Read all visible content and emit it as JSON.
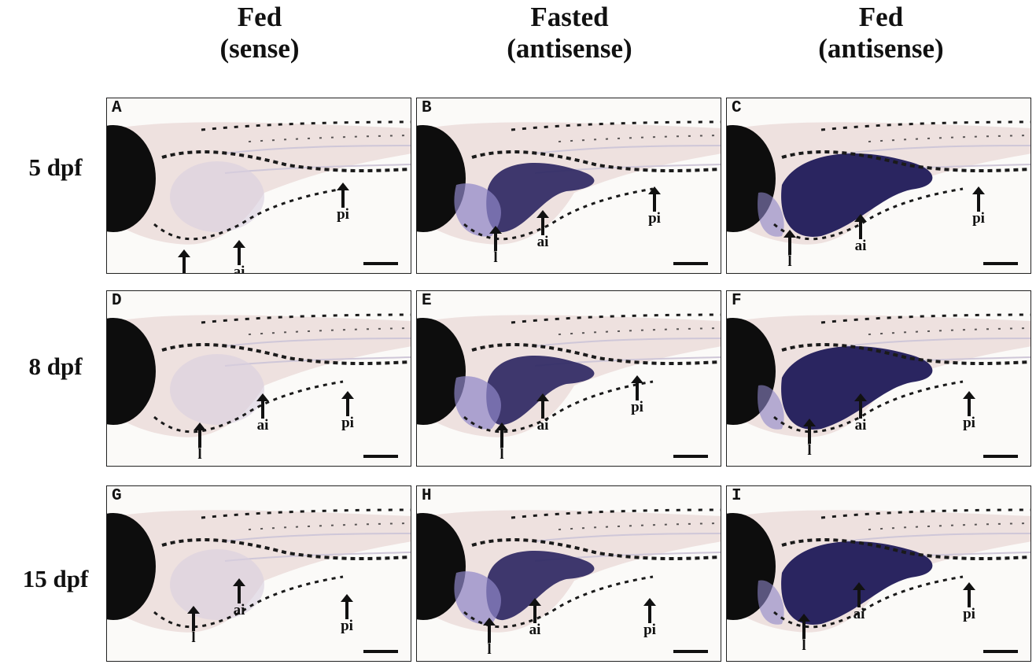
{
  "columns": [
    {
      "title": "Fed",
      "subtitle": "(sense)"
    },
    {
      "title": "Fasted",
      "subtitle": "(antisense)"
    },
    {
      "title": "Fed",
      "subtitle": "(antisense)"
    }
  ],
  "rows": [
    {
      "label": "5 dpf"
    },
    {
      "label": "8 dpf"
    },
    {
      "label": "15 dpf"
    }
  ],
  "panels": [
    {
      "letter": "A",
      "stain": "none"
    },
    {
      "letter": "B",
      "stain": "moderate"
    },
    {
      "letter": "C",
      "stain": "strong"
    },
    {
      "letter": "D",
      "stain": "none"
    },
    {
      "letter": "E",
      "stain": "moderate"
    },
    {
      "letter": "F",
      "stain": "strong"
    },
    {
      "letter": "G",
      "stain": "none"
    },
    {
      "letter": "H",
      "stain": "moderate"
    },
    {
      "letter": "I",
      "stain": "strong"
    }
  ],
  "markers": {
    "liver": "l",
    "anterior_intestine": "ai",
    "posterior_intestine": "pi"
  },
  "colors": {
    "stain": "#2a2560",
    "stain_light": "#8e86c8",
    "pigment": "#1a1a1a",
    "tissue": "#e8d6d4",
    "head": "#0d0d0d"
  }
}
